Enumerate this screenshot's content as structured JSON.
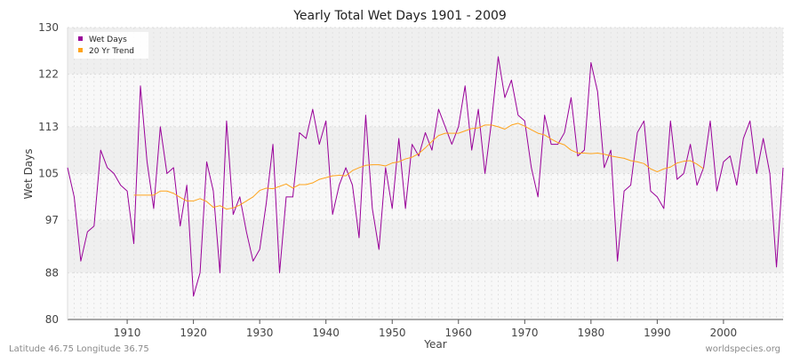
{
  "chart_data": {
    "type": "line",
    "title": "Yearly Total Wet Days 1901 - 2009",
    "xlabel": "Year",
    "ylabel": "Wet Days",
    "xlim": [
      1901,
      2009
    ],
    "ylim": [
      80,
      130
    ],
    "yticks": [
      80,
      88,
      97,
      105,
      113,
      122,
      130
    ],
    "xticks": [
      1910,
      1920,
      1930,
      1940,
      1950,
      1960,
      1970,
      1980,
      1990,
      2000
    ],
    "grid": true,
    "legend_position": "top-left",
    "colors": {
      "wet_days": "#990099",
      "trend": "#ffa31a",
      "band_dark": "#efefef",
      "band_light": "#f8f8f8"
    },
    "series": [
      {
        "name": "Wet Days",
        "x_start": 1901,
        "values": [
          106,
          101,
          90,
          95,
          96,
          109,
          106,
          105,
          103,
          102,
          93,
          120,
          107,
          99,
          113,
          105,
          106,
          96,
          103,
          84,
          88,
          107,
          102,
          88,
          114,
          98,
          101,
          95,
          90,
          92,
          100,
          110,
          88,
          101,
          101,
          112,
          111,
          116,
          110,
          114,
          98,
          103,
          106,
          103,
          94,
          115,
          99,
          92,
          106,
          99,
          111,
          99,
          110,
          108,
          112,
          109,
          116,
          113,
          110,
          113,
          120,
          109,
          116,
          105,
          114,
          125,
          118,
          121,
          115,
          114,
          106,
          101,
          115,
          110,
          110,
          112,
          118,
          108,
          109,
          124,
          119,
          106,
          109,
          90,
          102,
          103,
          112,
          114,
          102,
          101,
          99,
          114,
          104,
          105,
          110,
          103,
          106,
          114,
          102,
          107,
          108,
          103,
          111,
          114,
          105,
          111,
          105,
          89,
          106
        ]
      },
      {
        "name": "20 Yr Trend",
        "x_start": 1911,
        "values": [
          101.3,
          101.3,
          101.3,
          101.3,
          102,
          102,
          101.6,
          100.9,
          100.3,
          100.3,
          100.7,
          100.2,
          99.2,
          99.5,
          98.9,
          99.1,
          99.6,
          100.3,
          101,
          102.1,
          102.5,
          102.4,
          102.8,
          103.2,
          102.5,
          103.1,
          103.1,
          103.4,
          104,
          104.3,
          104.6,
          104.7,
          104.6,
          105.5,
          106,
          106.4,
          106.5,
          106.5,
          106.3,
          106.8,
          107,
          107.5,
          107.8,
          108.4,
          109.4,
          110.5,
          111.5,
          111.9,
          111.9,
          111.9,
          112.3,
          112.7,
          112.8,
          113.3,
          113.3,
          113,
          112.6,
          113.3,
          113.6,
          113.1,
          112.5,
          111.9,
          111.6,
          110.9,
          110.3,
          109.9,
          109,
          108.5,
          108.5,
          108.4,
          108.5,
          108.3,
          108,
          107.8,
          107.6,
          107.2,
          107,
          106.7,
          105.8,
          105.3,
          105.8,
          106.1,
          106.8,
          107.1,
          107.2,
          106.6,
          105.8
        ]
      }
    ]
  },
  "footer": {
    "left": "Latitude 46.75 Longitude 36.75",
    "right": "worldspecies.org"
  }
}
